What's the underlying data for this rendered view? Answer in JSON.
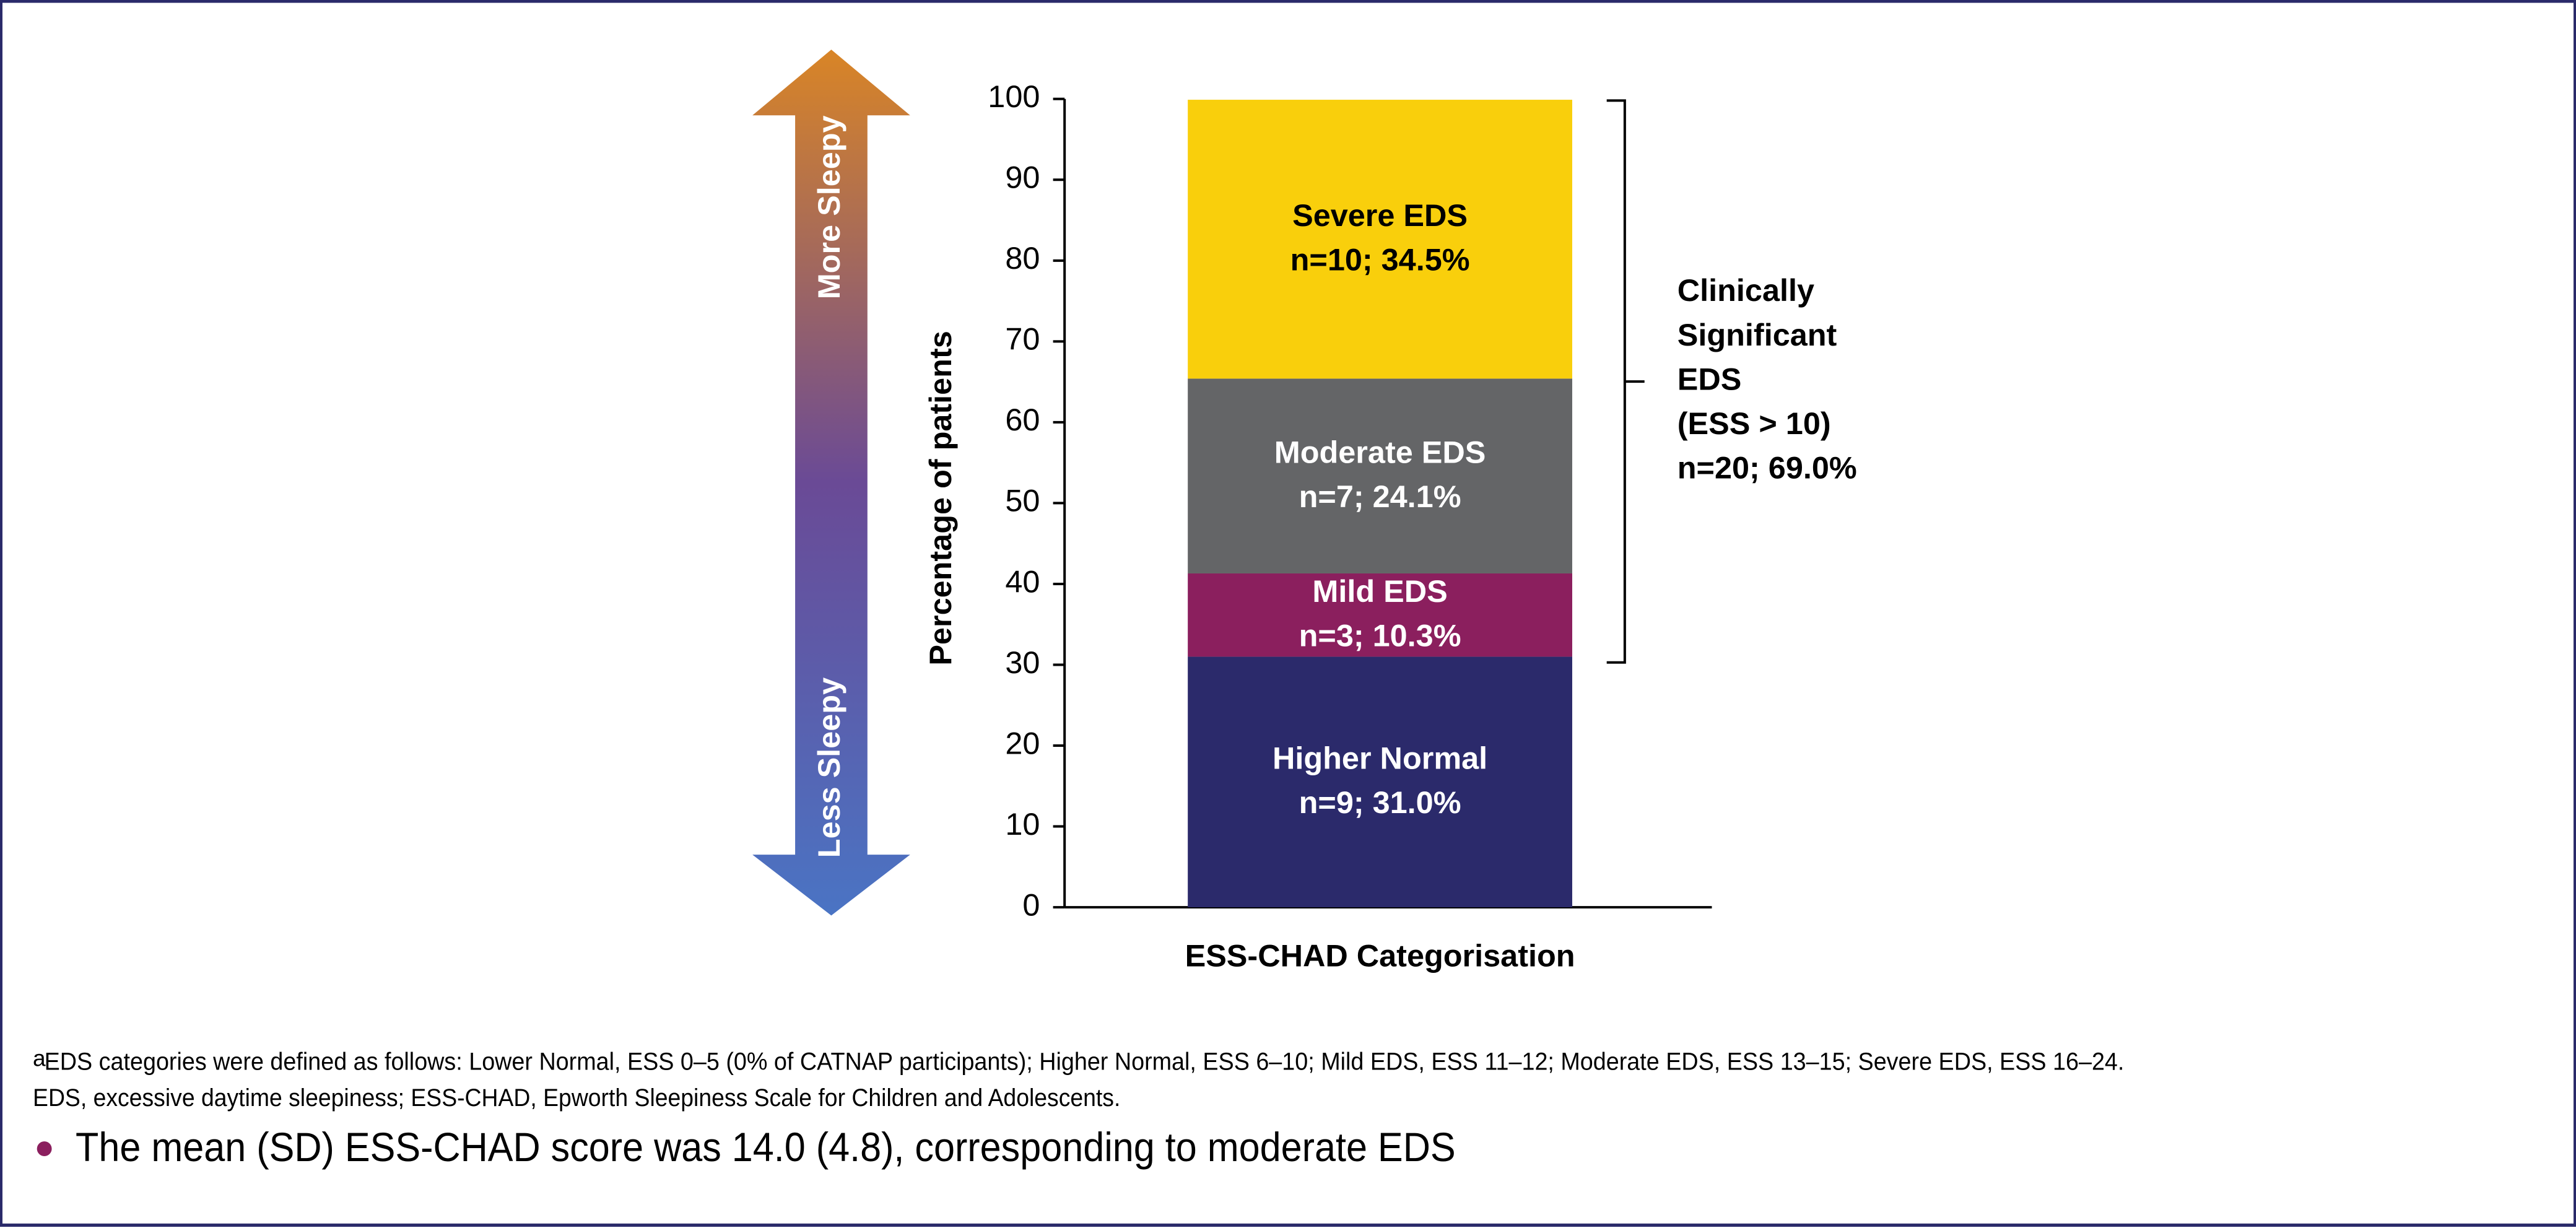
{
  "chart_data": {
    "type": "bar",
    "stacked": true,
    "x_label": "ESS-CHAD Categorisation",
    "y_label": "Percentage of patients",
    "categories": [
      null
    ],
    "series": [
      {
        "name": "Higher Normal",
        "color": "#2b2a6b",
        "text_color": "#ffffff",
        "values": [
          31.0
        ],
        "value_labels": [
          "n=9; 31.0%"
        ]
      },
      {
        "name": "Mild EDS",
        "color": "#8b1f5e",
        "text_color": "#ffffff",
        "values": [
          10.3
        ],
        "value_labels": [
          "n=3; 10.3%"
        ]
      },
      {
        "name": "Moderate EDS",
        "color": "#646567",
        "text_color": "#ffffff",
        "values": [
          24.1
        ],
        "value_labels": [
          "n=7; 24.1%"
        ]
      },
      {
        "name": "Severe EDS",
        "color": "#f9cf0c",
        "text_color": "#000000",
        "values": [
          34.5
        ],
        "value_labels": [
          "n=10; 34.5%"
        ]
      }
    ],
    "ylim": [
      0,
      100
    ],
    "yticks": [
      0,
      10,
      20,
      30,
      40,
      50,
      60,
      70,
      80,
      90,
      100
    ],
    "grid": false,
    "bracket_label": [
      "Clinically",
      "Significant",
      "EDS",
      "(ESS > 10)",
      "n=20; 69.0%"
    ],
    "arrow_top": "More Sleepy",
    "arrow_bottom": "Less Sleepy"
  },
  "footnotes": {
    "marker": "a",
    "line1": "EDS categories were defined as follows: Lower Normal, ESS 0–5 (0% of CATNAP participants); Higher Normal, ESS 6–10; Mild EDS, ESS 11–12; Moderate EDS, ESS 13–15; Severe EDS, ESS 16–24.",
    "line2": "EDS, excessive daytime sleepiness; ESS-CHAD, Epworth Sleepiness Scale for Children and Adolescents.",
    "bullet": "The mean (SD) ESS-CHAD score was 14.0 (4.8), corresponding to moderate EDS"
  }
}
